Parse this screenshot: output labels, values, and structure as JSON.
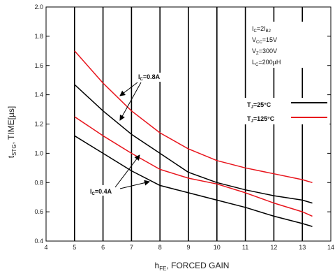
{
  "chart_data": {
    "type": "line",
    "xlabel": {
      "main": "h",
      "sub": "FE",
      "rest": ", FORCED GAIN"
    },
    "ylabel": {
      "main": "t",
      "sub": "STG",
      "rest": ", TIME[µs]"
    },
    "xlim": [
      4,
      14
    ],
    "ylim": [
      0.4,
      2.0
    ],
    "x_ticks": [
      "4",
      "5",
      "6",
      "7",
      "8",
      "9",
      "10",
      "11",
      "12",
      "13",
      "14"
    ],
    "y_ticks": [
      "0.4",
      "0.6",
      "0.8",
      "1.0",
      "1.2",
      "1.4",
      "1.6",
      "1.8",
      "2.0"
    ],
    "grid": "vertical",
    "conditions": [
      {
        "main": "I",
        "sub": "C",
        "rest": "=2I",
        "sub2": "B2"
      },
      {
        "main": "V",
        "sub": "CC",
        "rest": "=15V",
        "sub2": ""
      },
      {
        "main": "V",
        "sub": "Z",
        "rest": "=300V",
        "sub2": ""
      },
      {
        "main": "L",
        "sub": "C",
        "rest": "=200µH",
        "sub2": ""
      }
    ],
    "legend": [
      {
        "main": "T",
        "sub": "J",
        "rest": "=25°C",
        "color": "#000000"
      },
      {
        "main": "T",
        "sub": "J",
        "rest": "=125°C",
        "color": "#e8141c"
      }
    ],
    "annotations": [
      {
        "main": "I",
        "sub": "C",
        "rest": "=0.8A"
      },
      {
        "main": "I",
        "sub": "C",
        "rest": "=0.4A"
      }
    ],
    "series": [
      {
        "color": "#e8141c",
        "x": [
          5,
          6,
          7,
          8,
          9,
          10,
          11,
          12,
          13,
          13.35
        ],
        "y": [
          1.7,
          1.48,
          1.29,
          1.14,
          1.03,
          0.95,
          0.9,
          0.86,
          0.82,
          0.8
        ]
      },
      {
        "color": "#000000",
        "x": [
          5,
          6,
          7,
          8,
          9,
          10,
          11,
          12,
          13,
          13.35
        ],
        "y": [
          1.47,
          1.29,
          1.13,
          1.0,
          0.87,
          0.8,
          0.75,
          0.71,
          0.68,
          0.66
        ]
      },
      {
        "color": "#e8141c",
        "x": [
          5,
          6,
          7,
          8,
          9,
          10,
          11,
          12,
          13,
          13.35
        ],
        "y": [
          1.25,
          1.12,
          1.0,
          0.89,
          0.83,
          0.79,
          0.73,
          0.66,
          0.6,
          0.57
        ]
      },
      {
        "color": "#000000",
        "x": [
          5,
          6,
          7,
          8,
          9,
          10,
          11,
          12,
          13,
          13.35
        ],
        "y": [
          1.12,
          1.0,
          0.88,
          0.78,
          0.73,
          0.68,
          0.63,
          0.57,
          0.52,
          0.5
        ]
      }
    ]
  }
}
